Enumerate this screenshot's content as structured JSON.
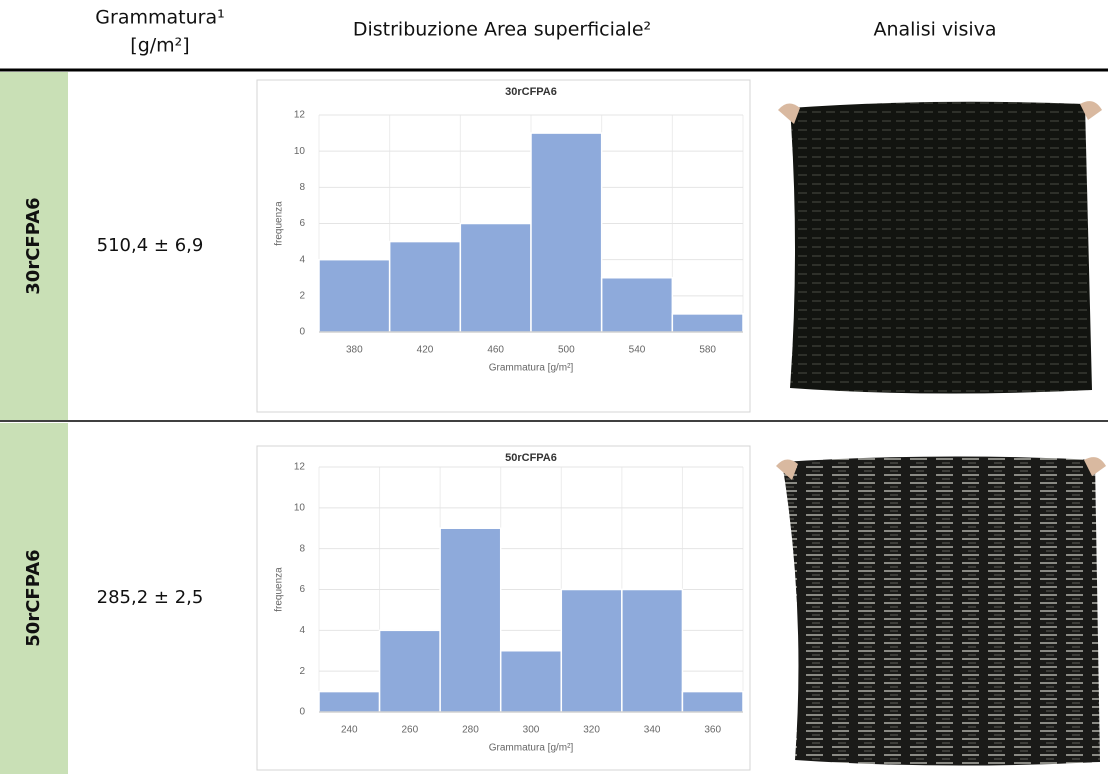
{
  "header": {
    "col1": [
      "Grammatura¹",
      "[g/m²]"
    ],
    "col2": "Distribuzione Area superficiale²",
    "col3": "Analisi visiva"
  },
  "rows": [
    {
      "label": "30rCFPA6",
      "grammatura": "510,4 ± 6,9",
      "chart": {
        "type": "bar",
        "title": "30rCFPA6",
        "x_label": "Grammatura [g/m²]",
        "y_label": "frequenza",
        "categories": [
          380,
          420,
          460,
          500,
          540,
          580
        ],
        "values": [
          4,
          5,
          6,
          11,
          3,
          1
        ],
        "color": "#8eaadb",
        "ylim": [
          0,
          12
        ],
        "yticks": [
          0,
          2,
          4,
          6,
          8,
          10,
          12
        ],
        "grid": true
      }
    },
    {
      "label": "50rCFPA6",
      "grammatura": "285,2 ± 2,5",
      "chart": {
        "type": "bar",
        "title": "50rCFPA6",
        "x_label": "Grammatura [g/m²]",
        "y_label": "frequenza",
        "categories": [
          240,
          260,
          280,
          300,
          320,
          340,
          360
        ],
        "values": [
          1,
          4,
          9,
          3,
          6,
          6,
          1
        ],
        "color": "#8eaadb",
        "ylim": [
          0,
          12
        ],
        "yticks": [
          0,
          2,
          4,
          6,
          8,
          10,
          12
        ],
        "grid": true
      }
    }
  ]
}
